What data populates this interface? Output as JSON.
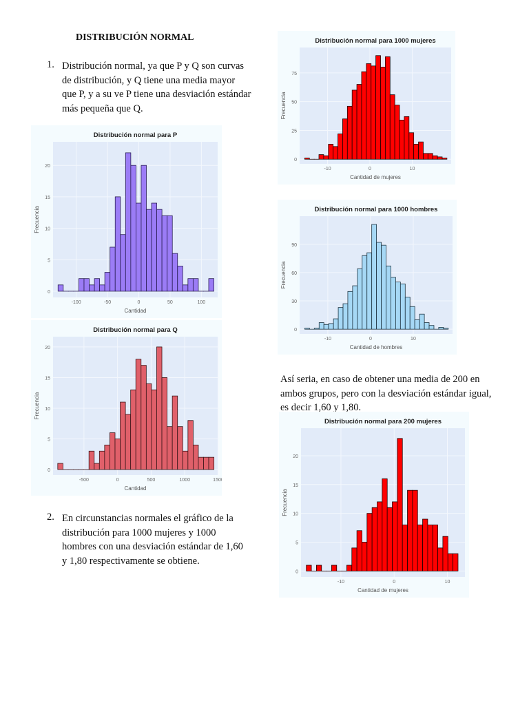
{
  "doc": {
    "heading": "DISTRIBUCIÓN NORMAL",
    "item1_num": "1.",
    "item1_text": "Distribución normal, ya que P y Q son curvas de distribución, y Q tiene una media mayor que P, y a su ve P tiene una desviación estándar más pequeña que Q.",
    "item2_num": "2.",
    "item2_text": "En circunstancias normales el gráfico de la distribución para 1000 mujeres y 1000 hombres con una desviación estándar de 1,60 y 1,80 respectivamente se obtiene.",
    "side_text": "Así seria, en caso de obtener una media de 200 en ambos grupos, pero con la desviación estándar igual, es decir 1,60 y 1,80."
  },
  "chart_data": [
    {
      "id": "p",
      "type": "bar",
      "title": "Distribución normal para P",
      "xlabel": "Cantidad",
      "ylabel": "Frecuencia",
      "fill": "#9b7cf6",
      "stroke": "#2a1e55",
      "bin_start": -129,
      "bin_width": 8.3,
      "xlim": [
        -137,
        126
      ],
      "ylim": [
        0,
        23
      ],
      "xticks": [
        -100,
        -50,
        0,
        50,
        100
      ],
      "yticks": [
        0,
        5,
        10,
        15,
        20
      ],
      "values": [
        1,
        0,
        0,
        0,
        2,
        2,
        1,
        2,
        1,
        3,
        7,
        15,
        9,
        22,
        20,
        14,
        20,
        13,
        14,
        13,
        12,
        12,
        6,
        4,
        1,
        2,
        2,
        0,
        0,
        2
      ]
    },
    {
      "id": "q",
      "type": "bar",
      "title": "Distribución normal para Q",
      "xlabel": "Cantidad",
      "ylabel": "Frecuencia",
      "fill": "#e0606a",
      "stroke": "#3a1518",
      "bin_start": -890,
      "bin_width": 77.5,
      "xlim": [
        -960,
        1490
      ],
      "ylim": [
        0,
        21
      ],
      "xticks": [
        -500,
        0,
        500,
        1000,
        1500
      ],
      "yticks": [
        0,
        5,
        10,
        15,
        20
      ],
      "values": [
        1,
        0,
        0,
        0,
        0,
        0,
        3,
        1,
        3,
        4,
        6,
        5,
        11,
        9,
        13,
        18,
        17,
        14,
        13,
        20,
        15,
        7,
        12,
        7,
        3,
        8,
        4,
        2,
        2,
        2
      ]
    },
    {
      "id": "m1000",
      "type": "bar",
      "title": "Distribución normal para 1000 mujeres",
      "xlabel": "Cantidad de mujeres",
      "ylabel": "Frecuencia",
      "fill": "#ff0000",
      "stroke": "#200000",
      "bin_start": -15.4,
      "bin_width": 1.12,
      "xlim": [
        -16.6,
        19.2
      ],
      "ylim": [
        0,
        94
      ],
      "xticks": [
        -10,
        0,
        10
      ],
      "yticks": [
        0,
        25,
        50,
        75
      ],
      "values": [
        1,
        0,
        0,
        4,
        3,
        13,
        11,
        22,
        35,
        46,
        60,
        65,
        76,
        83,
        81,
        90,
        80,
        89,
        56,
        47,
        34,
        37,
        23,
        13,
        15,
        5,
        5,
        3,
        2,
        1
      ]
    },
    {
      "id": "h1000",
      "type": "bar",
      "title": "Distribución normal para 1000 hombres",
      "xlabel": "Cantidad de hombres",
      "ylabel": "Frecuencia",
      "fill": "#a6d8f5",
      "stroke": "#1d3340",
      "bin_start": -15.4,
      "bin_width": 1.12,
      "xlim": [
        -16.6,
        19.2
      ],
      "ylim": [
        0,
        116
      ],
      "xticks": [
        -10,
        0,
        10
      ],
      "yticks": [
        0,
        30,
        60,
        90
      ],
      "values": [
        1,
        0,
        1,
        7,
        5,
        6,
        11,
        23,
        27,
        40,
        46,
        64,
        78,
        81,
        111,
        92,
        89,
        67,
        55,
        50,
        48,
        34,
        24,
        10,
        16,
        7,
        4,
        0,
        2,
        1
      ]
    },
    {
      "id": "m200",
      "type": "bar",
      "title": "Distribución normal para 200 mujeres",
      "xlabel": "Cantidad de mujeres",
      "ylabel": "Frecuencia",
      "fill": "#ff0000",
      "stroke": "#200000",
      "bin_start": -16.5,
      "bin_width": 0.95,
      "xlim": [
        -17.5,
        13.3
      ],
      "ylim": [
        0,
        24
      ],
      "xticks": [
        -10,
        0,
        10
      ],
      "yticks": [
        0,
        5,
        10,
        15,
        20
      ],
      "values": [
        1,
        0,
        1,
        0,
        0,
        1,
        0,
        0,
        1,
        4,
        7,
        5,
        10,
        11,
        12,
        16,
        11,
        12,
        23,
        8,
        14,
        14,
        8,
        9,
        8,
        8,
        4,
        6,
        3,
        3
      ]
    }
  ]
}
